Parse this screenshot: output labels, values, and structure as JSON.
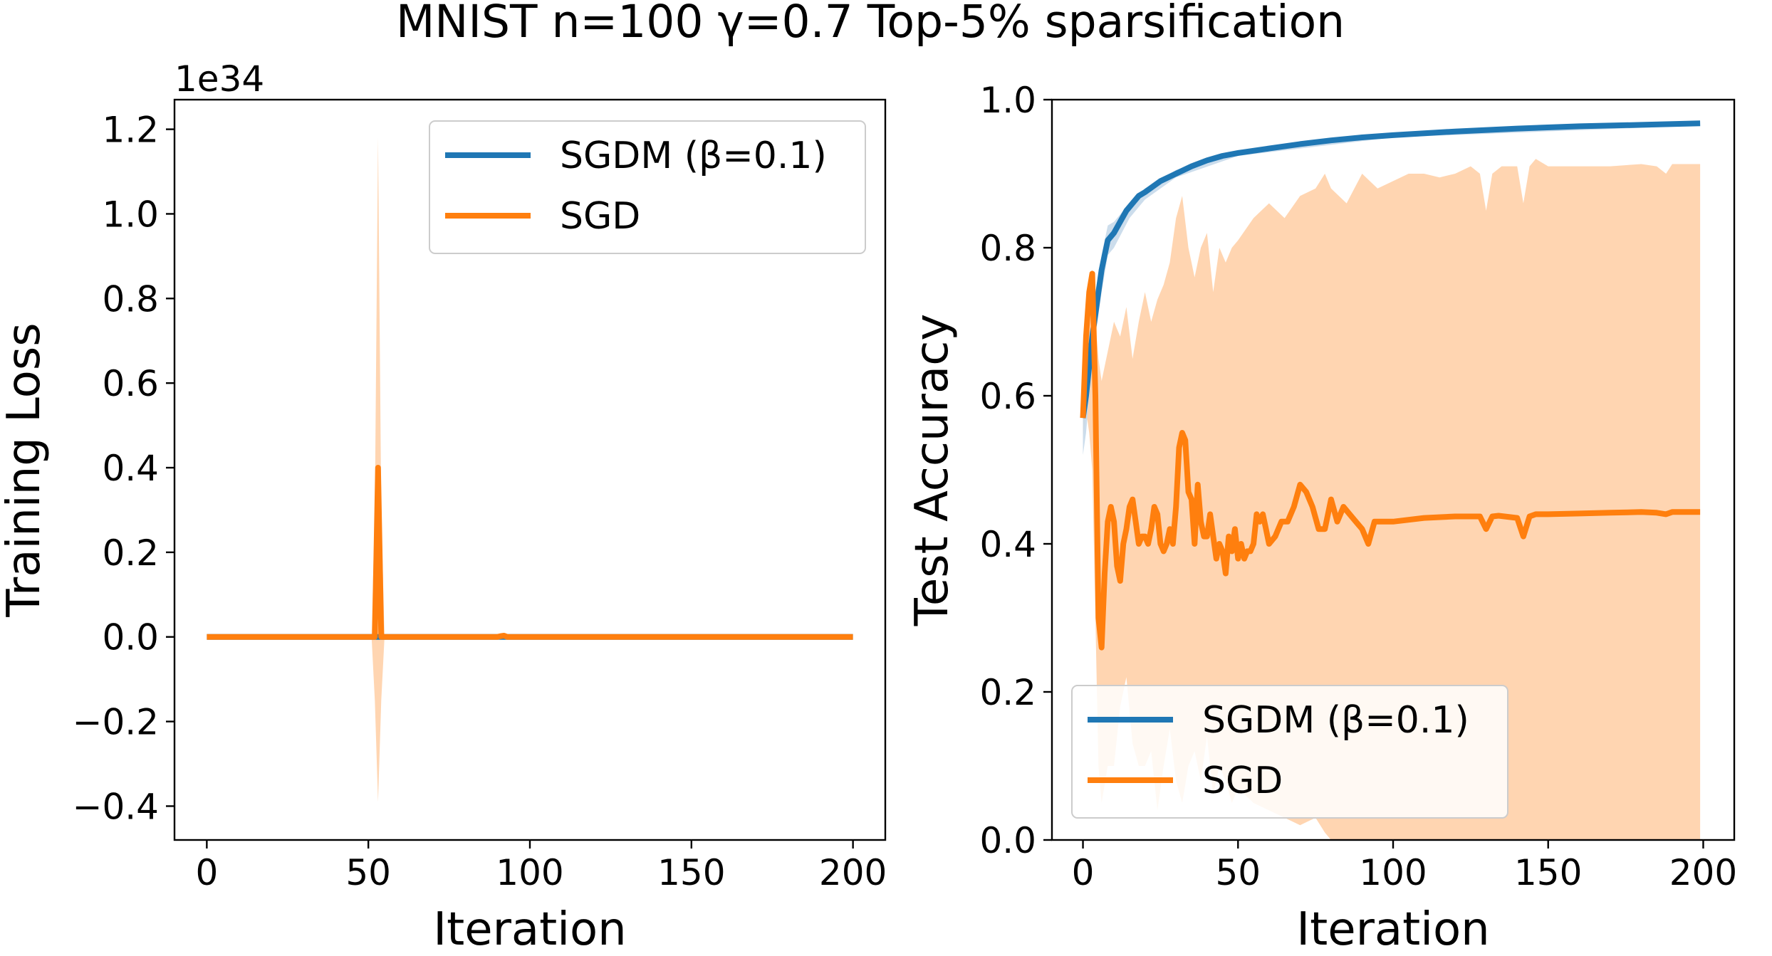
{
  "figure": {
    "title": "MNIST n=100 γ=0.7 Top-5% sparsification"
  },
  "colors": {
    "sgdm": "#1f77b4",
    "sgd": "#ff7f0e",
    "sgd_band": "#ffd3ad",
    "sgdm_band": "#c7d9ea"
  },
  "chart_data": [
    {
      "type": "line",
      "title": "",
      "xlabel": "Iteration",
      "ylabel": "Training Loss",
      "offset_label": "1e34",
      "xlim": [
        -10,
        210
      ],
      "ylim": [
        -0.48,
        1.27
      ],
      "y_scale_note": "values in units of 1e34",
      "xticks": [
        0,
        50,
        100,
        150,
        200
      ],
      "xtick_labels": [
        "0",
        "50",
        "100",
        "150",
        "200"
      ],
      "yticks": [
        -0.4,
        -0.2,
        0.0,
        0.2,
        0.4,
        0.6,
        0.8,
        1.0,
        1.2
      ],
      "ytick_labels": [
        "−0.4",
        "−0.2",
        "0.0",
        "0.2",
        "0.4",
        "0.6",
        "0.8",
        "1.0",
        "1.2"
      ],
      "grid": false,
      "legend_position": "upper right",
      "legend": [
        "SGDM (β=0.1)",
        "SGD"
      ],
      "series": [
        {
          "name": "SGDM (β=0.1)",
          "color": "#1f77b4",
          "x": [
            0,
            200
          ],
          "y": [
            0.0,
            0.0
          ]
        },
        {
          "name": "SGD",
          "color": "#ff7f0e",
          "x": [
            0,
            51,
            52,
            53,
            54,
            55,
            90,
            91,
            92,
            93,
            200
          ],
          "y": [
            0.0,
            0.0,
            0.0,
            0.4,
            0.0,
            0.0,
            0.0,
            0.002,
            0.003,
            0.0,
            0.0
          ],
          "band": {
            "x": [
              0,
              51,
              52,
              53,
              54,
              55,
              200
            ],
            "upper": [
              0.0,
              0.0,
              0.3,
              1.18,
              0.3,
              0.0,
              0.0
            ],
            "lower": [
              0.0,
              0.0,
              -0.15,
              -0.39,
              -0.15,
              0.0,
              0.0
            ]
          }
        }
      ]
    },
    {
      "type": "line",
      "title": "",
      "xlabel": "Iteration",
      "ylabel": "Test Accuracy",
      "xlim": [
        -10,
        210
      ],
      "ylim": [
        0.0,
        1.0
      ],
      "xticks": [
        0,
        50,
        100,
        150,
        200
      ],
      "xtick_labels": [
        "0",
        "50",
        "100",
        "150",
        "200"
      ],
      "yticks": [
        0.0,
        0.2,
        0.4,
        0.6,
        0.8,
        1.0
      ],
      "ytick_labels": [
        "0.0",
        "0.2",
        "0.4",
        "0.6",
        "0.8",
        "1.0"
      ],
      "grid": false,
      "legend_position": "lower left",
      "legend": [
        "SGDM (β=0.1)",
        "SGD"
      ],
      "series": [
        {
          "name": "SGDM (β=0.1)",
          "color": "#1f77b4",
          "x": [
            0,
            1,
            2,
            3,
            4,
            5,
            6,
            7,
            8,
            9,
            10,
            12,
            14,
            16,
            18,
            20,
            25,
            30,
            35,
            40,
            45,
            50,
            60,
            70,
            80,
            90,
            100,
            120,
            140,
            160,
            180,
            199
          ],
          "y": [
            0.57,
            0.6,
            0.64,
            0.68,
            0.71,
            0.74,
            0.77,
            0.79,
            0.81,
            0.815,
            0.82,
            0.835,
            0.85,
            0.86,
            0.87,
            0.875,
            0.89,
            0.9,
            0.91,
            0.918,
            0.924,
            0.928,
            0.934,
            0.94,
            0.945,
            0.949,
            0.952,
            0.957,
            0.961,
            0.964,
            0.966,
            0.968
          ],
          "band": {
            "x": [
              0,
              1,
              2,
              3,
              4,
              6,
              8,
              10,
              15,
              20,
              30,
              50,
              100,
              199
            ],
            "upper": [
              0.6,
              0.63,
              0.67,
              0.71,
              0.74,
              0.79,
              0.83,
              0.835,
              0.86,
              0.88,
              0.905,
              0.932,
              0.955,
              0.971
            ],
            "lower": [
              0.52,
              0.55,
              0.6,
              0.64,
              0.68,
              0.74,
              0.79,
              0.8,
              0.84,
              0.865,
              0.895,
              0.924,
              0.949,
              0.965
            ]
          }
        },
        {
          "name": "SGD",
          "color": "#ff7f0e",
          "x": [
            0,
            1,
            2,
            3,
            4,
            5,
            6,
            7,
            8,
            9,
            10,
            11,
            12,
            13,
            14,
            15,
            16,
            17,
            18,
            19,
            20,
            21,
            22,
            23,
            24,
            25,
            26,
            27,
            28,
            29,
            30,
            31,
            32,
            33,
            34,
            35,
            36,
            37,
            38,
            39,
            40,
            41,
            42,
            43,
            44,
            45,
            46,
            47,
            48,
            49,
            50,
            51,
            52,
            53,
            54,
            55,
            56,
            57,
            58,
            59,
            60,
            62,
            64,
            66,
            68,
            70,
            72,
            74,
            76,
            78,
            80,
            82,
            84,
            86,
            88,
            90,
            92,
            94,
            96,
            98,
            100,
            110,
            120,
            128,
            130,
            132,
            134,
            140,
            142,
            144,
            146,
            150,
            160,
            170,
            180,
            185,
            188,
            190,
            199
          ],
          "y": [
            0.57,
            0.68,
            0.74,
            0.765,
            0.6,
            0.3,
            0.26,
            0.36,
            0.43,
            0.45,
            0.43,
            0.37,
            0.35,
            0.4,
            0.42,
            0.45,
            0.46,
            0.43,
            0.4,
            0.41,
            0.41,
            0.4,
            0.42,
            0.45,
            0.44,
            0.4,
            0.39,
            0.4,
            0.42,
            0.4,
            0.45,
            0.53,
            0.55,
            0.54,
            0.47,
            0.46,
            0.4,
            0.48,
            0.43,
            0.41,
            0.41,
            0.44,
            0.41,
            0.38,
            0.4,
            0.39,
            0.36,
            0.41,
            0.39,
            0.42,
            0.38,
            0.4,
            0.38,
            0.39,
            0.39,
            0.4,
            0.44,
            0.43,
            0.44,
            0.42,
            0.4,
            0.41,
            0.43,
            0.43,
            0.45,
            0.48,
            0.47,
            0.45,
            0.42,
            0.42,
            0.46,
            0.43,
            0.45,
            0.44,
            0.43,
            0.42,
            0.4,
            0.43,
            0.43,
            0.43,
            0.43,
            0.435,
            0.437,
            0.437,
            0.42,
            0.437,
            0.438,
            0.435,
            0.41,
            0.437,
            0.44,
            0.44,
            0.441,
            0.442,
            0.443,
            0.442,
            0.44,
            0.443,
            0.443
          ],
          "band": {
            "x": [
              0,
              1,
              2,
              3,
              4,
              5,
              6,
              8,
              10,
              12,
              14,
              16,
              18,
              20,
              22,
              24,
              26,
              28,
              30,
              32,
              34,
              36,
              38,
              40,
              42,
              44,
              46,
              48,
              50,
              55,
              60,
              65,
              70,
              75,
              78,
              80,
              85,
              90,
              95,
              100,
              105,
              110,
              115,
              120,
              125,
              128,
              130,
              132,
              135,
              140,
              142,
              144,
              146,
              150,
              160,
              170,
              180,
              185,
              188,
              190,
              199
            ],
            "upper": [
              0.6,
              0.7,
              0.75,
              0.77,
              0.7,
              0.65,
              0.62,
              0.66,
              0.7,
              0.68,
              0.72,
              0.65,
              0.7,
              0.74,
              0.7,
              0.73,
              0.75,
              0.78,
              0.84,
              0.87,
              0.8,
              0.76,
              0.8,
              0.82,
              0.74,
              0.8,
              0.78,
              0.8,
              0.81,
              0.84,
              0.86,
              0.84,
              0.87,
              0.88,
              0.9,
              0.88,
              0.86,
              0.9,
              0.88,
              0.89,
              0.9,
              0.9,
              0.895,
              0.9,
              0.91,
              0.9,
              0.85,
              0.9,
              0.91,
              0.91,
              0.86,
              0.91,
              0.92,
              0.91,
              0.91,
              0.91,
              0.913,
              0.91,
              0.9,
              0.913,
              0.913
            ],
            "lower": [
              0.54,
              0.58,
              0.55,
              0.5,
              0.3,
              0.1,
              0.05,
              0.1,
              0.1,
              0.18,
              0.22,
              0.13,
              0.1,
              0.1,
              0.12,
              0.04,
              0.1,
              0.15,
              0.08,
              0.05,
              0.1,
              0.12,
              0.08,
              0.14,
              0.06,
              0.1,
              0.08,
              0.05,
              0.07,
              0.05,
              0.04,
              0.03,
              0.02,
              0.03,
              0.01,
              0.0,
              0.0,
              0.0,
              0.0,
              0.0,
              0.0,
              0.0,
              0.0,
              0.0,
              0.0,
              0.0,
              0.0,
              0.0,
              0.0,
              0.0,
              0.0,
              0.0,
              0.0,
              0.0,
              0.0,
              0.0,
              0.0,
              0.0,
              0.0,
              0.0,
              0.0
            ]
          }
        }
      ]
    }
  ]
}
